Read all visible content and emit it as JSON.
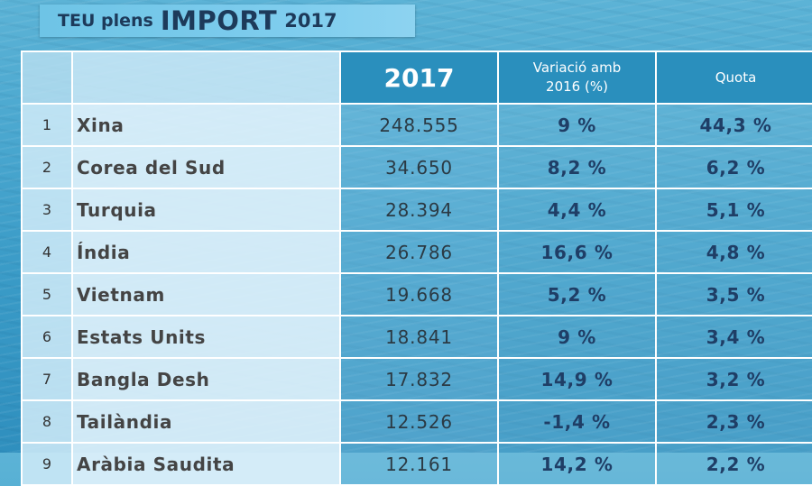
{
  "title": {
    "prefix": "TEU plens",
    "main": "IMPORT",
    "year": "2017"
  },
  "table": {
    "headers": {
      "year": "2017",
      "variation": "Variació amb 2016 (%)",
      "variation_line1": "Variació amb",
      "variation_line2": "2016 (%)",
      "quota": "Quota"
    },
    "rows": [
      {
        "rank": "1",
        "country": "Xina",
        "value": "248.555",
        "variation": "9 %",
        "quota": "44,3 %"
      },
      {
        "rank": "2",
        "country": "Corea del Sud",
        "value": "34.650",
        "variation": "8,2 %",
        "quota": "6,2 %"
      },
      {
        "rank": "3",
        "country": "Turquia",
        "value": "28.394",
        "variation": "4,4 %",
        "quota": "5,1 %"
      },
      {
        "rank": "4",
        "country": "Índia",
        "value": "26.786",
        "variation": "16,6 %",
        "quota": "4,8 %"
      },
      {
        "rank": "5",
        "country": "Vietnam",
        "value": "19.668",
        "variation": "5,2 %",
        "quota": "3,5 %"
      },
      {
        "rank": "6",
        "country": "Estats Units",
        "value": "18.841",
        "variation": "9 %",
        "quota": "3,4 %"
      },
      {
        "rank": "7",
        "country": "Bangla Desh",
        "value": "17.832",
        "variation": "14,9 %",
        "quota": "3,2 %"
      },
      {
        "rank": "8",
        "country": "Tailàndia",
        "value": "12.526",
        "variation": "-1,4 %",
        "quota": "2,3 %"
      },
      {
        "rank": "9",
        "country": "Aràbia Saudita",
        "value": "12.161",
        "variation": "14,2 %",
        "quota": "2,2 %"
      }
    ]
  },
  "colors": {
    "header_bg": "#2a8fbd",
    "title_text": "#1d3a5a",
    "value_text": "#1f3e66"
  }
}
